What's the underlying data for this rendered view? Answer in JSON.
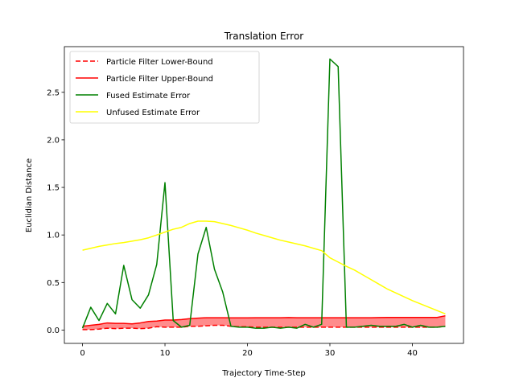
{
  "chart_data": {
    "type": "line",
    "title": "Translation Error",
    "xlabel": "Trajectory Time-Step",
    "ylabel": "Euclidian  Distance",
    "xlim": [
      -2.2,
      46.2
    ],
    "ylim": [
      -0.14,
      2.98
    ],
    "xticks": [
      0,
      10,
      20,
      30,
      40
    ],
    "yticks": [
      0.0,
      0.5,
      1.0,
      1.5,
      2.0,
      2.5
    ],
    "xtick_labels": [
      "0",
      "10",
      "20",
      "30",
      "40"
    ],
    "ytick_labels": [
      "0.0",
      "0.5",
      "1.0",
      "1.5",
      "2.0",
      "2.5"
    ],
    "grid": false,
    "legend_position": "top-left",
    "x": [
      0,
      1,
      2,
      3,
      4,
      5,
      6,
      7,
      8,
      9,
      10,
      11,
      12,
      13,
      14,
      15,
      16,
      17,
      18,
      19,
      20,
      21,
      22,
      23,
      24,
      25,
      26,
      27,
      28,
      29,
      30,
      31,
      32,
      33,
      34,
      35,
      36,
      37,
      38,
      39,
      40,
      41,
      42,
      43,
      44
    ],
    "series": [
      {
        "name": "Particle Filter Lower-Bound",
        "color": "#ff0000",
        "dash": true,
        "values": [
          0.005,
          0.005,
          0.01,
          0.02,
          0.015,
          0.02,
          0.02,
          0.015,
          0.02,
          0.035,
          0.03,
          0.03,
          0.03,
          0.04,
          0.04,
          0.045,
          0.05,
          0.05,
          0.04,
          0.035,
          0.035,
          0.03,
          0.03,
          0.03,
          0.03,
          0.03,
          0.03,
          0.03,
          0.03,
          0.03,
          0.03,
          0.03,
          0.03,
          0.03,
          0.03,
          0.03,
          0.03,
          0.03,
          0.03,
          0.03,
          0.03,
          0.03,
          0.03,
          0.03,
          0.04
        ]
      },
      {
        "name": "Particle Filter Upper-Bound",
        "color": "#ff0000",
        "dash": false,
        "values": [
          0.04,
          0.05,
          0.06,
          0.075,
          0.07,
          0.07,
          0.065,
          0.075,
          0.09,
          0.095,
          0.105,
          0.105,
          0.11,
          0.12,
          0.125,
          0.13,
          0.13,
          0.13,
          0.128,
          0.128,
          0.128,
          0.13,
          0.13,
          0.13,
          0.13,
          0.132,
          0.13,
          0.13,
          0.13,
          0.13,
          0.13,
          0.13,
          0.13,
          0.13,
          0.13,
          0.13,
          0.132,
          0.133,
          0.133,
          0.133,
          0.133,
          0.133,
          0.133,
          0.133,
          0.15
        ]
      },
      {
        "name": "Fused Estimate Error",
        "color": "#008000",
        "dash": false,
        "values": [
          0.02,
          0.24,
          0.1,
          0.28,
          0.17,
          0.68,
          0.32,
          0.23,
          0.37,
          0.69,
          1.55,
          0.1,
          0.03,
          0.05,
          0.8,
          1.08,
          0.64,
          0.4,
          0.04,
          0.03,
          0.03,
          0.02,
          0.02,
          0.03,
          0.02,
          0.03,
          0.02,
          0.06,
          0.03,
          0.06,
          2.85,
          2.77,
          0.03,
          0.03,
          0.04,
          0.05,
          0.04,
          0.04,
          0.04,
          0.06,
          0.03,
          0.05,
          0.03,
          0.03,
          0.04
        ]
      },
      {
        "name": "Unfused Estimate Error",
        "color": "#ffff00",
        "dash": false,
        "values": [
          0.84,
          0.86,
          0.88,
          0.895,
          0.91,
          0.92,
          0.935,
          0.95,
          0.97,
          1.0,
          1.03,
          1.06,
          1.08,
          1.12,
          1.145,
          1.145,
          1.14,
          1.12,
          1.1,
          1.075,
          1.05,
          1.02,
          0.995,
          0.97,
          0.945,
          0.925,
          0.905,
          0.885,
          0.86,
          0.835,
          0.76,
          0.715,
          0.67,
          0.63,
          0.58,
          0.53,
          0.48,
          0.43,
          0.39,
          0.35,
          0.31,
          0.275,
          0.24,
          0.205,
          0.17
        ]
      }
    ],
    "fill_between": {
      "color": "#ff0000",
      "opacity": 0.45
    }
  }
}
